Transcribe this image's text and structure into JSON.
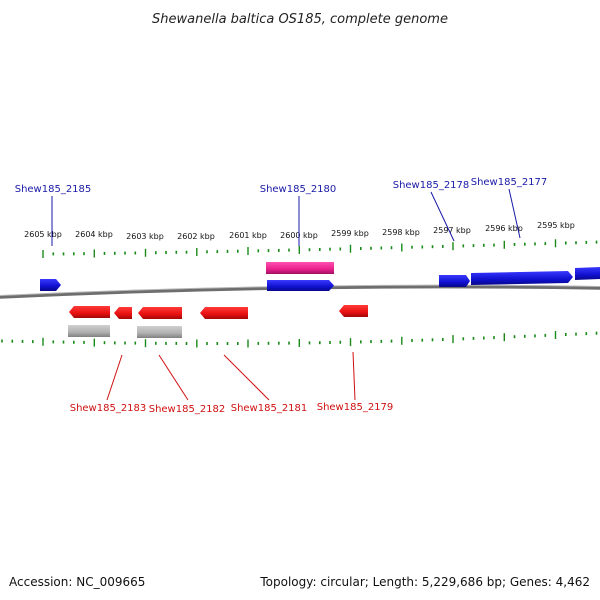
{
  "title": "Shewanella baltica OS185, complete genome",
  "footer": {
    "accession": "Accession: NC_009665",
    "topology": "Topology: circular; Length: 5,229,686 bp; Genes: 4,462"
  },
  "ruler_labels": [
    "2605 kbp",
    "2604 kbp",
    "2603 kbp",
    "2602 kbp",
    "2601 kbp",
    "2600 kbp",
    "2599 kbp",
    "2598 kbp",
    "2597 kbp",
    "2596 kbp",
    "2595 kbp"
  ],
  "genes_top": [
    "Shew185_2185",
    "Shew185_2180",
    "Shew185_2178",
    "Shew185_2177"
  ],
  "genes_bottom": [
    "Shew185_2183",
    "Shew185_2182",
    "Shew185_2181",
    "Shew185_2179"
  ],
  "colors": {
    "forward_strand": "#1414d8",
    "reverse_strand": "#e81010",
    "highlight": "#e8208c",
    "pseudo": "#b0b0b0",
    "ticks": "#1a8a1a",
    "backbone": "#808080",
    "label_blue": "#1a1aa8",
    "label_red": "#d01010"
  }
}
